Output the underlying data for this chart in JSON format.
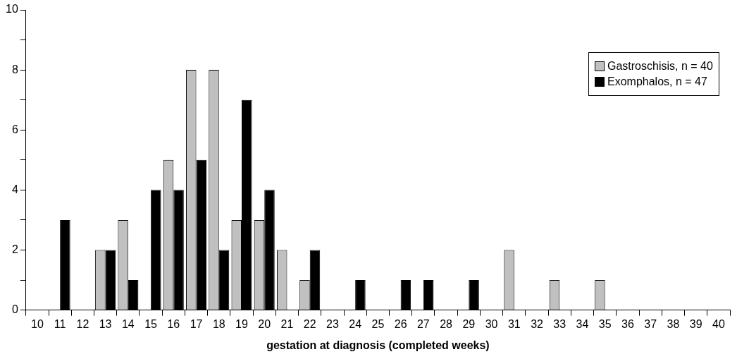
{
  "chart_data": {
    "type": "bar",
    "xlabel": "gestation at diagnosis (completed weeks)",
    "categories": [
      "10",
      "11",
      "12",
      "13",
      "14",
      "15",
      "16",
      "17",
      "18",
      "19",
      "20",
      "21",
      "22",
      "23",
      "24",
      "25",
      "26",
      "27",
      "28",
      "29",
      "30",
      "31",
      "32",
      "33",
      "34",
      "35",
      "36",
      "37",
      "38",
      "39",
      "40"
    ],
    "series": [
      {
        "name": "Gastroschisis, n = 40",
        "color": "#c0c0c0",
        "values": [
          0,
          0,
          0,
          2,
          3,
          0,
          5,
          8,
          8,
          3,
          3,
          2,
          1,
          0,
          0,
          0,
          0,
          0,
          0,
          0,
          0,
          2,
          0,
          1,
          0,
          1,
          0,
          0,
          0,
          0,
          0
        ]
      },
      {
        "name": "Exomphalos, n = 47",
        "color": "#000000",
        "values": [
          0,
          3,
          0,
          2,
          1,
          4,
          4,
          5,
          2,
          7,
          4,
          0,
          2,
          0,
          1,
          0,
          1,
          1,
          0,
          1,
          0,
          0,
          0,
          0,
          0,
          0,
          0,
          0,
          0,
          0,
          0
        ]
      }
    ],
    "ylim": [
      0,
      10
    ],
    "yticks": [
      0,
      {
        "value": 1,
        "label": null
      },
      2,
      {
        "value": 3,
        "label": null
      },
      4,
      {
        "value": 5,
        "label": null
      },
      6,
      {
        "value": 7,
        "label": null
      },
      8,
      {
        "value": 9,
        "label": null
      },
      10
    ],
    "grid": false,
    "legend": "top right"
  }
}
